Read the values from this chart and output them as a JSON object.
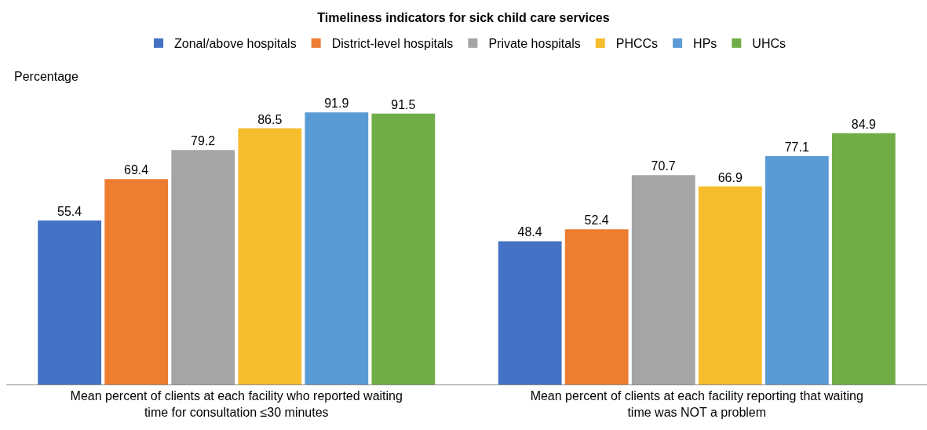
{
  "chart_data": {
    "type": "bar",
    "title": "Timeliness indicators for sick child care services",
    "ylabel": "Percentage",
    "categories": [
      "Mean percent of clients at each facility who reported waiting time for consultation ≤30 minutes",
      "Mean percent of clients at each facility reporting that waiting time was NOT a problem"
    ],
    "series": [
      {
        "name": "Zonal/above hospitals",
        "color": "#4472c4",
        "values": [
          55.4,
          48.4
        ]
      },
      {
        "name": "District-level hospitals",
        "color": "#ed7d31",
        "values": [
          69.4,
          52.4
        ]
      },
      {
        "name": "Private hospitals",
        "color": "#a5a5a5",
        "values": [
          79.2,
          70.7
        ]
      },
      {
        "name": "PHCCs",
        "color": "#f6bd2c",
        "values": [
          86.5,
          66.9
        ]
      },
      {
        "name": "HPs",
        "color": "#5b9bd5",
        "values": [
          91.9,
          77.1
        ]
      },
      {
        "name": "UHCs",
        "color": "#70ad47",
        "values": [
          91.5,
          84.9
        ]
      }
    ],
    "data_labels": true,
    "legend": "top"
  }
}
